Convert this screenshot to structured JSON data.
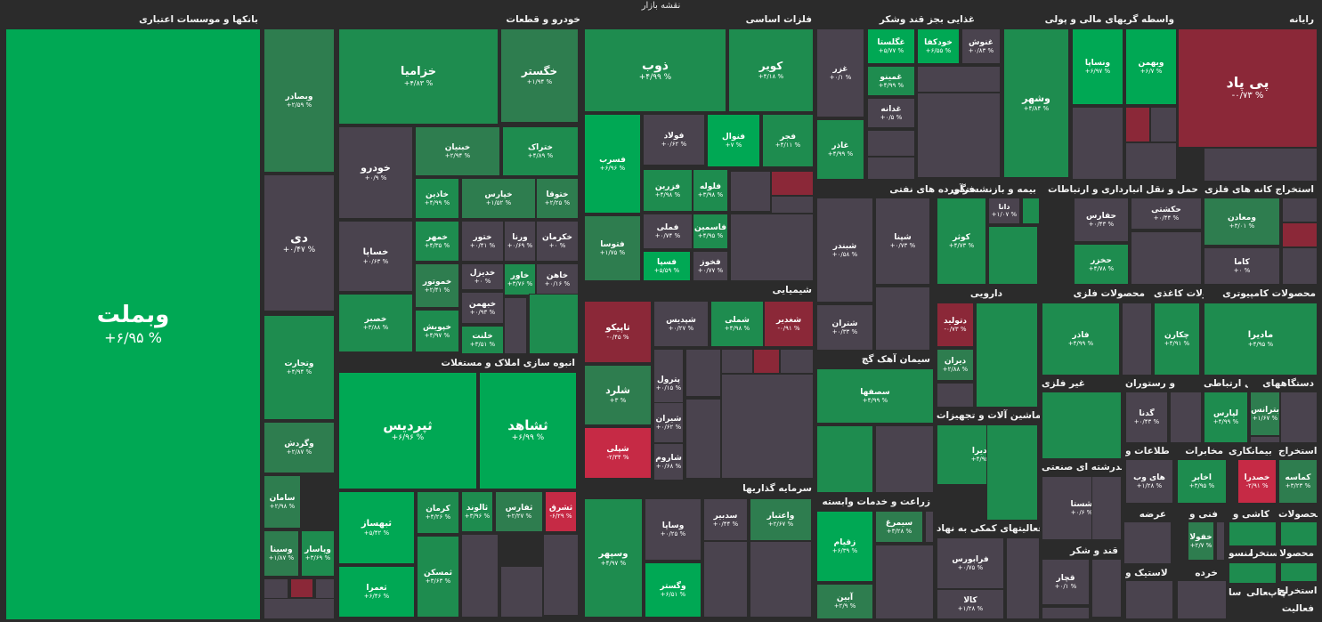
{
  "page_title": "نقشه بازار",
  "colors": {
    "background": "#2b2b2b",
    "up_strong": "#00a854",
    "up_mid": "#1e8c4f",
    "up_weak": "#2e7d4f",
    "flat": "#4a434e",
    "down": "#8b2838",
    "down_strong": "#c62a45"
  },
  "chart_data": {
    "type": "treemap",
    "title": "نقشه بازار",
    "sectors": [
      {
        "name": "بانکها و موسسات اعتباری",
        "tiles": [
          {
            "symbol": "وبملت",
            "change": "+۶/۹۵ %"
          },
          {
            "symbol": "وبصادر",
            "change": "+۲/۵۹ %"
          },
          {
            "symbol": "دی",
            "change": "+۰/۴۷ %"
          },
          {
            "symbol": "وتجارت",
            "change": "+۴/۹۴ %"
          },
          {
            "symbol": "وگردش",
            "change": "+۲/۸۷ %"
          },
          {
            "symbol": "سامان",
            "change": "+۲/۹۸ %"
          },
          {
            "symbol": "وسینا",
            "change": "+۱/۸۷ %"
          },
          {
            "symbol": "وپاسار",
            "change": "+۳/۶۹ %"
          }
        ]
      },
      {
        "name": "خودرو و قطعات",
        "tiles": [
          {
            "symbol": "خزامیا",
            "change": "+۴/۸۳ %"
          },
          {
            "symbol": "خگستر",
            "change": "+۱/۹۴ %"
          },
          {
            "symbol": "خودرو",
            "change": "+۰/۹ %"
          },
          {
            "symbol": "خبنیان",
            "change": "+۲/۹۴ %"
          },
          {
            "symbol": "ختراک",
            "change": "+۴/۸۹ %"
          },
          {
            "symbol": "خاذین",
            "change": "+۴/۹۹ %"
          },
          {
            "symbol": "خپارس",
            "change": "+۱/۵۲ %"
          },
          {
            "symbol": "ختوقا",
            "change": "+۲/۲۵ %"
          },
          {
            "symbol": "خساپا",
            "change": "+۰/۶۳ %"
          },
          {
            "symbol": "خمهر",
            "change": "+۴/۳۵ %"
          },
          {
            "symbol": "ختور",
            "change": "+۰/۴۱ %"
          },
          {
            "symbol": "ورنا",
            "change": "+۰/۶۹ %"
          },
          {
            "symbol": "خکرمان",
            "change": "+۰ %"
          },
          {
            "symbol": "خموتور",
            "change": "+۲/۴۱ %"
          },
          {
            "symbol": "خدیزل",
            "change": "+۰ %"
          },
          {
            "symbol": "خاور",
            "change": "+۳/۷۶ %"
          },
          {
            "symbol": "خاهن",
            "change": "+۰/۱۶ %"
          },
          {
            "symbol": "خصبر",
            "change": "+۳/۸۸ %"
          },
          {
            "symbol": "خپویش",
            "change": "+۴/۹۷ %"
          },
          {
            "symbol": "خبهمن",
            "change": "+۰/۹۳ %"
          },
          {
            "symbol": "خلنت",
            "change": "+۳/۵۱ %"
          }
        ]
      },
      {
        "name": "انبوه سازی املاک و مستغلات",
        "tiles": [
          {
            "symbol": "ثپردیس",
            "change": "+۶/۹۶ %"
          },
          {
            "symbol": "ثشاهد",
            "change": "+۶/۹۹ %"
          },
          {
            "symbol": "ثبهساز",
            "change": "+۵/۴۲ %"
          },
          {
            "symbol": "کرمان",
            "change": "+۴/۲۶ %"
          },
          {
            "symbol": "ثالوند",
            "change": "+۳/۹۶ %"
          },
          {
            "symbol": "ثفارس",
            "change": "+۲/۲۷ %"
          },
          {
            "symbol": "ثشرق",
            "change": "-۶/۲۹ %"
          },
          {
            "symbol": "ثمسکن",
            "change": "+۳/۶۳ %"
          },
          {
            "symbol": "ثعمرا",
            "change": "+۶/۴۶ %"
          }
        ]
      },
      {
        "name": "فلزات اساسی",
        "tiles": [
          {
            "symbol": "ذوب",
            "change": "+۴/۹۹ %"
          },
          {
            "symbol": "کویر",
            "change": "+۴/۱۸ %"
          },
          {
            "symbol": "فسرب",
            "change": "+۶/۹۶ %"
          },
          {
            "symbol": "فولاد",
            "change": "+۰/۶۲ %"
          },
          {
            "symbol": "فنوال",
            "change": "+۷ %"
          },
          {
            "symbol": "فجر",
            "change": "+۴/۱۱ %"
          },
          {
            "symbol": "فزرین",
            "change": "+۴/۹۸ %"
          },
          {
            "symbol": "فلوله",
            "change": "+۳/۹۸ %"
          },
          {
            "symbol": "فملی",
            "change": "+۰/۷۴ %"
          },
          {
            "symbol": "فاسمین",
            "change": "+۴/۹۵ %"
          },
          {
            "symbol": "فتوسا",
            "change": "+۱/۷۵ %"
          },
          {
            "symbol": "فسپا",
            "change": "+۵/۵۹ %"
          },
          {
            "symbol": "فخوز",
            "change": "+۰/۷۷ %"
          }
        ]
      },
      {
        "name": "شیمیایی",
        "tiles": [
          {
            "symbol": "تاپیکو",
            "change": "-۰/۴۵ %"
          },
          {
            "symbol": "شپدیس",
            "change": "+۰/۲۷ %"
          },
          {
            "symbol": "شملی",
            "change": "+۴/۹۸ %"
          },
          {
            "symbol": "شغدیر",
            "change": "-۰/۹۱ %"
          },
          {
            "symbol": "شلرد",
            "change": "+۳ %"
          },
          {
            "symbol": "پترول",
            "change": "+۰/۱۵ %"
          },
          {
            "symbol": "شیران",
            "change": "+۰/۶۲ %"
          },
          {
            "symbol": "شپلی",
            "change": "-۲/۳۴ %"
          },
          {
            "symbol": "شاروم",
            "change": "+۰/۶۸ %"
          }
        ]
      },
      {
        "name": "سرمایه گذاریها",
        "tiles": [
          {
            "symbol": "وسپهر",
            "change": "+۴/۹۷ %"
          },
          {
            "symbol": "وساپا",
            "change": "+۰/۲۵ %"
          },
          {
            "symbol": "سدبیر",
            "change": "+۰/۴۴ %"
          },
          {
            "symbol": "واعتبار",
            "change": "+۲/۶۷ %"
          },
          {
            "symbol": "وگستر",
            "change": "+۶/۵۱ %"
          }
        ]
      },
      {
        "name": "غذایی بجز قند وشکر",
        "tiles": [
          {
            "symbol": "غگلستا",
            "change": "+۵/۷۷ %"
          },
          {
            "symbol": "خودکفا",
            "change": "+۶/۵۵ %"
          },
          {
            "symbol": "غنوش",
            "change": "+۰/۸۳ %"
          },
          {
            "symbol": "غزر",
            "change": "+۰/۱ %"
          },
          {
            "symbol": "غمینو",
            "change": "+۴/۹۹ %"
          },
          {
            "symbol": "غدانه",
            "change": "+۰/۵ %"
          },
          {
            "symbol": "غاذر",
            "change": "+۴/۹۹ %"
          }
        ]
      },
      {
        "name": "فرآورده های نفتی",
        "tiles": [
          {
            "symbol": "شبندر",
            "change": "+۰/۵۸ %"
          },
          {
            "symbol": "شپنا",
            "change": "+۰/۷۳ %"
          },
          {
            "symbol": "شتران",
            "change": "+۰/۳۳ %"
          }
        ]
      },
      {
        "name": "سیمان آهک گچ",
        "tiles": [
          {
            "symbol": "سصفها",
            "change": "+۴/۹۹ %"
          }
        ]
      },
      {
        "name": "زراعت و خدمات وابسته",
        "tiles": [
          {
            "symbol": "زقیام",
            "change": "+۶/۳۹ %"
          },
          {
            "symbol": "سیمرغ",
            "change": "+۳/۲۸ %"
          },
          {
            "symbol": "آبین",
            "change": "+۲/۹ %"
          }
        ]
      },
      {
        "name": "واسطه گریهای مالی و پولی",
        "tiles": [
          {
            "symbol": "ونساپا",
            "change": "+۶/۹۷ %"
          },
          {
            "symbol": "وبهمن",
            "change": "+۶/۷ %"
          },
          {
            "symbol": "وشهر",
            "change": "+۴/۸۴ %"
          }
        ]
      },
      {
        "name": "رایانه",
        "tiles": [
          {
            "symbol": "پی پاد",
            "change": "-۰/۷۳ %"
          }
        ]
      },
      {
        "name": "بیمه و بازنشستگی",
        "tiles": [
          {
            "symbol": "کوثر",
            "change": "+۴/۷۳ %"
          },
          {
            "symbol": "دانا",
            "change": "+۱/۰۷ %"
          }
        ]
      },
      {
        "name": "حمل و نقل انبارداری و ارتباطات",
        "tiles": [
          {
            "symbol": "حفارس",
            "change": "+۰/۴۳ %"
          },
          {
            "symbol": "حکشتی",
            "change": "+۰/۴۴ %"
          },
          {
            "symbol": "حخزر",
            "change": "+۴/۷۸ %"
          }
        ]
      },
      {
        "name": "استخراج کانه های فلزی",
        "tiles": [
          {
            "symbol": "ومعادن",
            "change": "+۳/۰۱ %"
          },
          {
            "symbol": "کاما",
            "change": "+۰ %"
          }
        ]
      },
      {
        "name": "دارویی",
        "tiles": [
          {
            "symbol": "دتولید",
            "change": "-۰/۷۳ %"
          },
          {
            "symbol": "دیران",
            "change": "+۲/۸۸ %"
          }
        ]
      },
      {
        "name": "محصولات فلزی",
        "tiles": [
          {
            "symbol": "فاذر",
            "change": "+۴/۹۹ %"
          }
        ]
      },
      {
        "name": "محصولات کاغذی",
        "tiles": [
          {
            "symbol": "چکارن",
            "change": "+۴/۹۱ %"
          }
        ]
      },
      {
        "name": "محصولات کامپیوتری",
        "tiles": [
          {
            "symbol": "مادیرا",
            "change": "+۴/۹۵ %"
          }
        ]
      },
      {
        "name": "ماشین آلات و تجهیزات",
        "tiles": [
          {
            "symbol": "گلدیرا",
            "change": "+۴/۹۵ %"
          }
        ]
      },
      {
        "name": "فعالیتهای کمکی به نهاد",
        "tiles": [
          {
            "symbol": "فرابورس",
            "change": "+۰/۷۵ %"
          },
          {
            "symbol": "کالا",
            "change": "+۱/۲۸ %"
          }
        ]
      },
      {
        "name": "کانی غیر فلزی",
        "tiles": []
      },
      {
        "name": "هتل و رستوران",
        "tiles": [
          {
            "symbol": "گدنا",
            "change": "+۰/۴۳ %"
          }
        ]
      },
      {
        "name": "وسایل ارتباطی",
        "tiles": [
          {
            "symbol": "لپارس",
            "change": "+۴/۹۹ %"
          }
        ]
      },
      {
        "name": "دستگاههای",
        "tiles": [
          {
            "symbol": "بترانس",
            "change": "+۱/۶۷ %"
          }
        ]
      },
      {
        "name": "چندرشته ای صنعتی",
        "tiles": [
          {
            "symbol": "شستا",
            "change": "+۰/۶ %"
          }
        ]
      },
      {
        "name": "اطلاعات و",
        "tiles": [
          {
            "symbol": "های وب",
            "change": "+۱/۲۸ %"
          }
        ]
      },
      {
        "name": "مخابرات",
        "tiles": [
          {
            "symbol": "اخابر",
            "change": "+۳/۹۵ %"
          }
        ]
      },
      {
        "name": "بیمانکاری",
        "tiles": [
          {
            "symbol": "خصدرا",
            "change": "-۲/۹۱ %"
          }
        ]
      },
      {
        "name": "استخراج",
        "tiles": [
          {
            "symbol": "کماسه",
            "change": "+۳/۲۳ %"
          }
        ]
      },
      {
        "name": "عرضه",
        "tiles": []
      },
      {
        "name": "فنی و",
        "tiles": [
          {
            "symbol": "خفولا",
            "change": "+۲/۷ %"
          }
        ]
      },
      {
        "name": "قند و شکر",
        "tiles": [
          {
            "symbol": "قچار",
            "change": "+۰/۱ %"
          }
        ]
      },
      {
        "name": "لاستیک و",
        "tiles": []
      },
      {
        "name": "خرده",
        "tiles": []
      },
      {
        "name": "کاشی و",
        "tiles": []
      },
      {
        "name": "محصولات",
        "tiles": []
      },
      {
        "name": "منسو",
        "tiles": []
      },
      {
        "name": "استخرا",
        "tiles": []
      },
      {
        "name": "محصولا",
        "tiles": []
      },
      {
        "name": "سا",
        "tiles": []
      },
      {
        "name": "فعالی",
        "tiles": []
      },
      {
        "name": "چاپ",
        "tiles": []
      },
      {
        "name": "استخراج",
        "tiles": []
      },
      {
        "name": "فعالیت",
        "tiles": []
      }
    ]
  }
}
